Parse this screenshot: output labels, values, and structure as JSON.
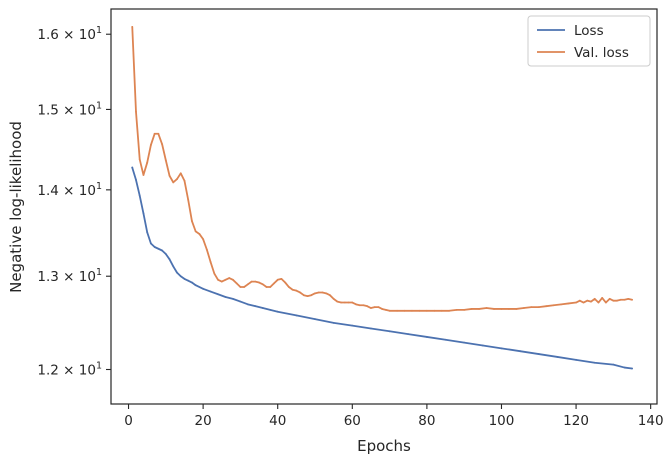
{
  "chart_data": {
    "type": "line",
    "title": "",
    "xlabel": "Epochs",
    "ylabel": "Negative log-likelihood",
    "xlim": [
      -4.7,
      141.7
    ],
    "ylim": [
      11.65,
      16.35
    ],
    "yscale": "log",
    "grid": false,
    "legend_position": "top-right",
    "xticks": [
      {
        "value": 0,
        "label": "0"
      },
      {
        "value": 20,
        "label": "20"
      },
      {
        "value": 40,
        "label": "40"
      },
      {
        "value": 60,
        "label": "60"
      },
      {
        "value": 80,
        "label": "80"
      },
      {
        "value": 100,
        "label": "100"
      },
      {
        "value": 120,
        "label": "120"
      },
      {
        "value": 140,
        "label": "140"
      }
    ],
    "yticks": [
      {
        "value": 12,
        "mantissa": "1.2",
        "base": "10",
        "exp": "1"
      },
      {
        "value": 13,
        "mantissa": "1.3",
        "base": "10",
        "exp": "1"
      },
      {
        "value": 14,
        "mantissa": "1.4",
        "base": "10",
        "exp": "1"
      },
      {
        "value": 15,
        "mantissa": "1.5",
        "base": "10",
        "exp": "1"
      },
      {
        "value": 16,
        "mantissa": "1.6",
        "base": "10",
        "exp": "1"
      }
    ],
    "series": [
      {
        "name": "Loss",
        "color": "#4c72b0",
        "x": [
          1,
          2,
          3,
          4,
          5,
          6,
          7,
          8,
          9,
          10,
          11,
          12,
          13,
          14,
          15,
          16,
          17,
          18,
          20,
          22,
          24,
          26,
          28,
          30,
          32,
          34,
          36,
          38,
          40,
          45,
          50,
          55,
          60,
          65,
          70,
          75,
          80,
          85,
          90,
          95,
          100,
          105,
          110,
          115,
          120,
          125,
          130,
          133,
          135
        ],
        "y": [
          14.27,
          14.12,
          13.93,
          13.72,
          13.5,
          13.37,
          13.33,
          13.31,
          13.29,
          13.25,
          13.19,
          13.11,
          13.04,
          13.0,
          12.97,
          12.95,
          12.93,
          12.9,
          12.86,
          12.83,
          12.8,
          12.77,
          12.75,
          12.72,
          12.69,
          12.67,
          12.65,
          12.63,
          12.61,
          12.57,
          12.53,
          12.49,
          12.46,
          12.43,
          12.4,
          12.37,
          12.34,
          12.31,
          12.28,
          12.25,
          12.22,
          12.19,
          12.16,
          12.13,
          12.1,
          12.07,
          12.05,
          12.02,
          12.01
        ]
      },
      {
        "name": "Val. loss",
        "color": "#dd8452",
        "x": [
          1,
          2,
          3,
          4,
          5,
          6,
          7,
          8,
          9,
          10,
          11,
          12,
          13,
          14,
          15,
          16,
          17,
          18,
          19,
          20,
          21,
          22,
          23,
          24,
          25,
          26,
          27,
          28,
          29,
          30,
          31,
          32,
          33,
          34,
          35,
          36,
          37,
          38,
          39,
          40,
          41,
          42,
          43,
          44,
          45,
          46,
          47,
          48,
          49,
          50,
          51,
          52,
          53,
          54,
          55,
          56,
          57,
          58,
          59,
          60,
          61,
          62,
          63,
          64,
          65,
          66,
          67,
          68,
          69,
          70,
          72,
          74,
          76,
          78,
          80,
          82,
          84,
          86,
          88,
          90,
          92,
          94,
          96,
          98,
          100,
          102,
          104,
          106,
          108,
          110,
          112,
          114,
          116,
          118,
          120,
          121,
          122,
          123,
          124,
          125,
          126,
          127,
          128,
          129,
          130,
          131,
          132,
          133,
          134,
          135
        ],
        "y": [
          16.1,
          14.97,
          14.37,
          14.18,
          14.33,
          14.55,
          14.69,
          14.69,
          14.56,
          14.36,
          14.17,
          14.09,
          14.13,
          14.2,
          14.11,
          13.88,
          13.63,
          13.51,
          13.48,
          13.42,
          13.3,
          13.16,
          13.03,
          12.96,
          12.94,
          12.96,
          12.98,
          12.96,
          12.92,
          12.88,
          12.88,
          12.91,
          12.94,
          12.94,
          12.93,
          12.91,
          12.88,
          12.88,
          12.92,
          12.96,
          12.97,
          12.93,
          12.88,
          12.85,
          12.84,
          12.82,
          12.79,
          12.78,
          12.79,
          12.81,
          12.82,
          12.82,
          12.81,
          12.79,
          12.75,
          12.72,
          12.71,
          12.71,
          12.71,
          12.71,
          12.69,
          12.68,
          12.68,
          12.67,
          12.65,
          12.66,
          12.66,
          12.64,
          12.63,
          12.62,
          12.62,
          12.62,
          12.62,
          12.62,
          12.62,
          12.62,
          12.62,
          12.62,
          12.63,
          12.63,
          12.64,
          12.64,
          12.65,
          12.64,
          12.64,
          12.64,
          12.64,
          12.65,
          12.66,
          12.66,
          12.67,
          12.68,
          12.69,
          12.7,
          12.71,
          12.73,
          12.71,
          12.73,
          12.72,
          12.75,
          12.71,
          12.76,
          12.71,
          12.75,
          12.73,
          12.73,
          12.74,
          12.74,
          12.75,
          12.74
        ]
      }
    ]
  }
}
